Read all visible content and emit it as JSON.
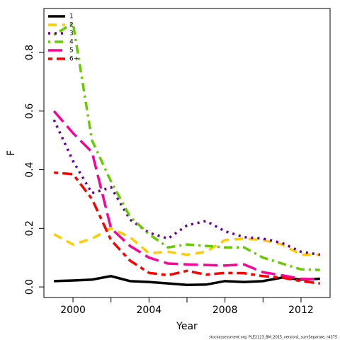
{
  "chart_data": {
    "type": "line",
    "xlabel": "Year",
    "ylabel": "F",
    "x": [
      1999,
      2000,
      2001,
      2002,
      2003,
      2004,
      2005,
      2006,
      2007,
      2008,
      2009,
      2010,
      2011,
      2012,
      2013
    ],
    "series": [
      {
        "name": "1",
        "color": "#000000",
        "dash": "solid",
        "values": [
          0.02,
          0.022,
          0.025,
          0.037,
          0.02,
          0.017,
          0.012,
          0.007,
          0.008,
          0.02,
          0.017,
          0.02,
          0.032,
          0.025,
          0.028
        ]
      },
      {
        "name": "2",
        "color": "#ffcc00",
        "dash": "dashed",
        "values": [
          0.18,
          0.145,
          0.165,
          0.2,
          0.17,
          0.115,
          0.12,
          0.11,
          0.12,
          0.16,
          0.165,
          0.16,
          0.145,
          0.11,
          0.11
        ]
      },
      {
        "name": "3",
        "color": "#660099",
        "dash": "dotted",
        "values": [
          0.57,
          0.43,
          0.32,
          0.34,
          0.23,
          0.185,
          0.165,
          0.21,
          0.225,
          0.19,
          0.17,
          0.165,
          0.15,
          0.12,
          0.11
        ]
      },
      {
        "name": "4",
        "color": "#66cc00",
        "dash": "dotdash",
        "values": [
          0.86,
          0.9,
          0.5,
          0.36,
          0.24,
          0.18,
          0.135,
          0.145,
          0.14,
          0.135,
          0.135,
          0.1,
          0.08,
          0.06,
          0.058
        ]
      },
      {
        "name": "5",
        "color": "#ff0099",
        "dash": "longdash",
        "values": [
          0.6,
          0.525,
          0.46,
          0.2,
          0.14,
          0.1,
          0.08,
          0.077,
          0.075,
          0.073,
          0.077,
          0.05,
          0.04,
          0.028,
          0.025
        ]
      },
      {
        "name": "6+",
        "color": "#ff0000",
        "dash": "twodash",
        "values": [
          0.39,
          0.385,
          0.3,
          0.16,
          0.09,
          0.048,
          0.04,
          0.055,
          0.042,
          0.048,
          0.047,
          0.037,
          0.032,
          0.02,
          0.012
        ]
      }
    ],
    "xlim": [
      1998.47,
      2013.53
    ],
    "xticks": [
      2000,
      2004,
      2008,
      2012
    ],
    "xminorticks": [
      2002,
      2006,
      2010
    ],
    "ylim": [
      -0.036,
      0.95
    ],
    "yticks": [
      {
        "value": 0,
        "label": "0.0"
      },
      0.2,
      0.4,
      0.6,
      0.8
    ],
    "legend": "top-left",
    "footnote": "stockassessment.org, PLE2123_BM_2015_version1_survSeparate, r4375"
  }
}
